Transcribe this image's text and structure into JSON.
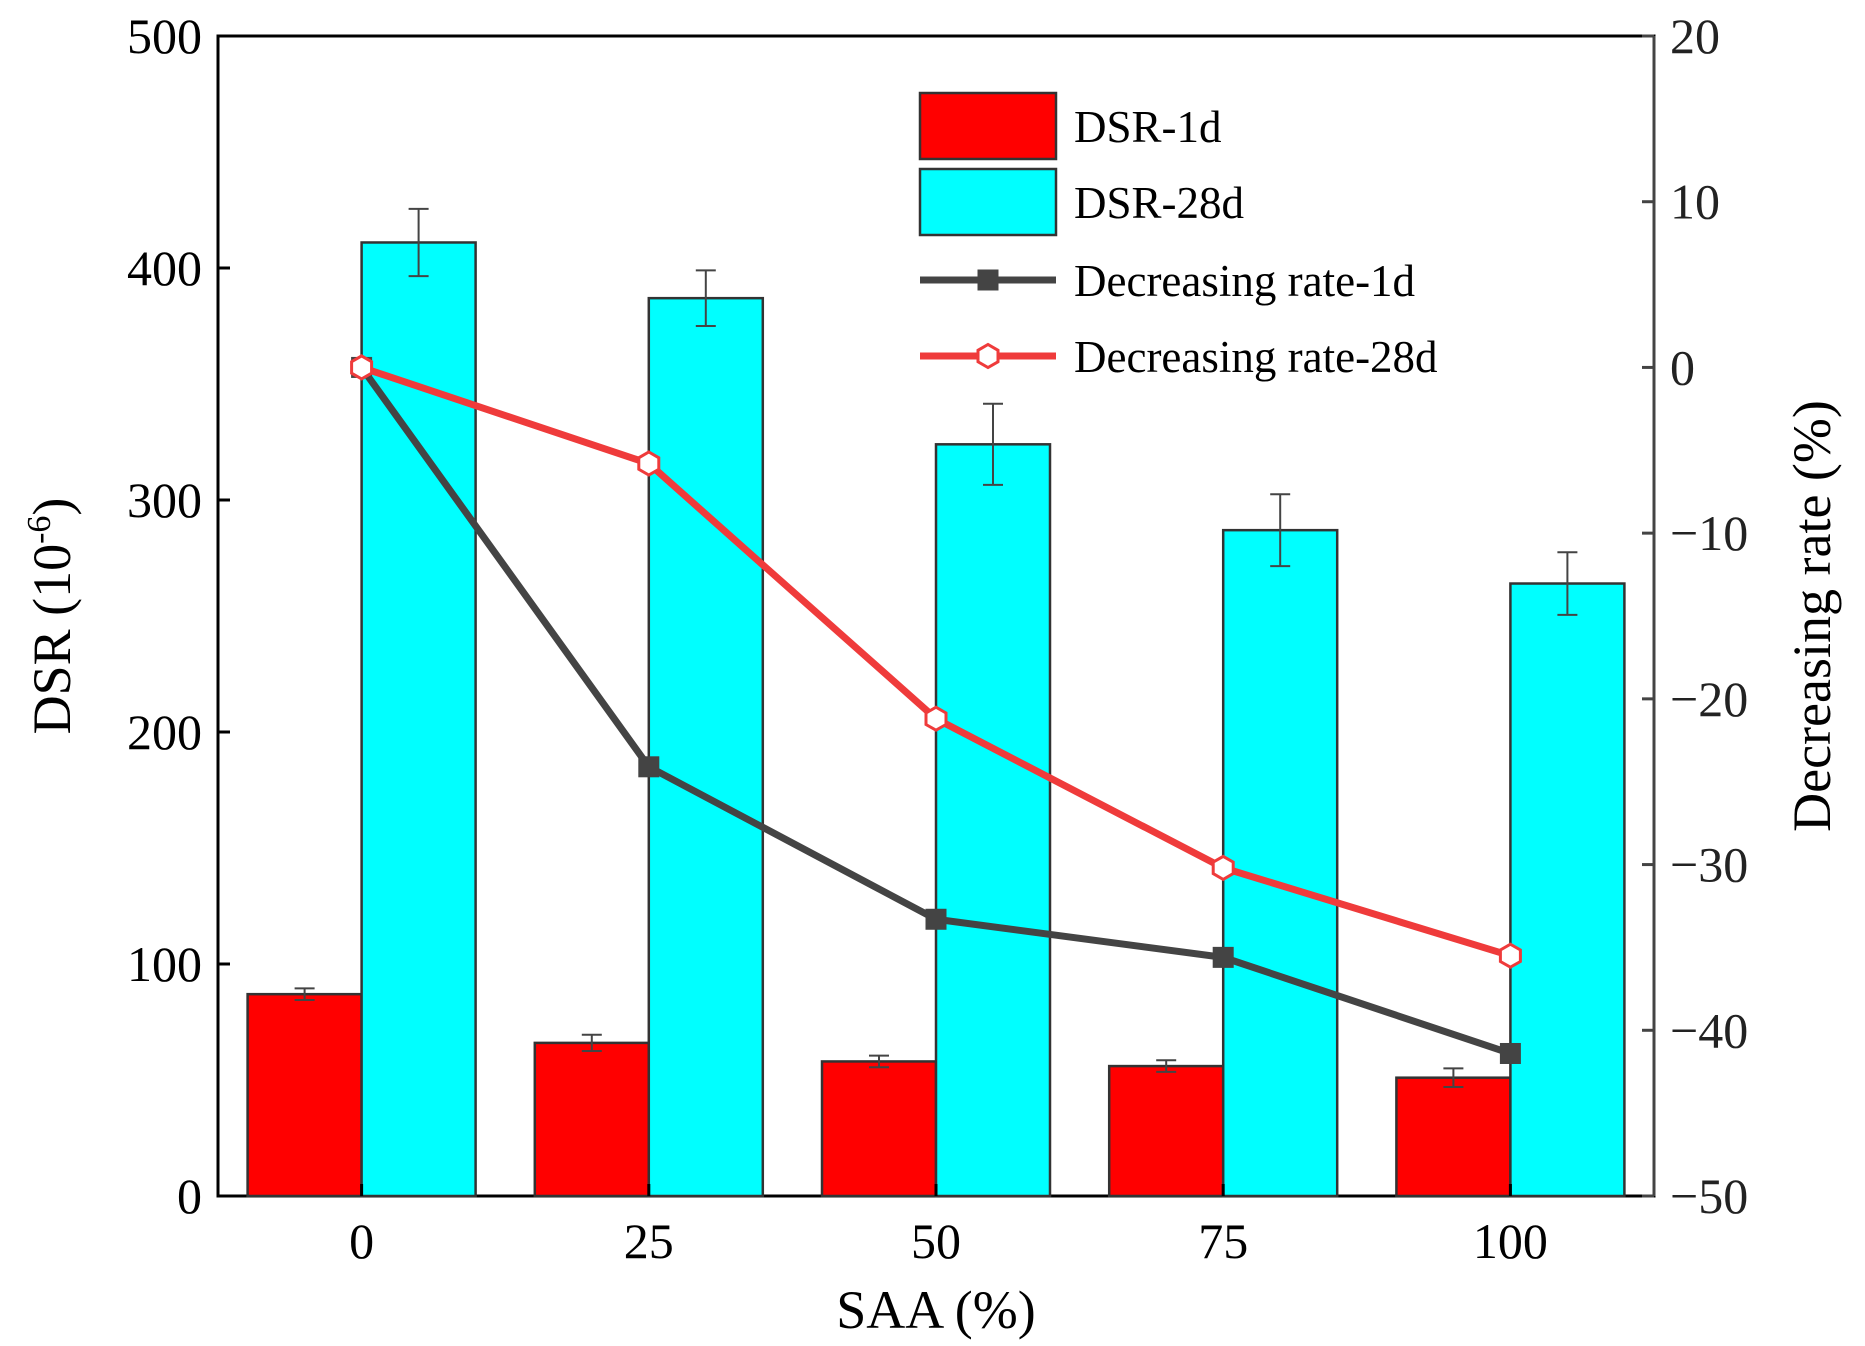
{
  "chart_data": {
    "type": "bar",
    "title": "",
    "categories": [
      "0",
      "25",
      "50",
      "75",
      "100"
    ],
    "xlabel": "SAA (%)",
    "ylabel": {
      "main": "DSR (10",
      "sup": "-6",
      "end": ")"
    },
    "y2label": "Decreasing rate (%)",
    "ylim": [
      0,
      500
    ],
    "y2lim": [
      -50,
      20
    ],
    "yticks": [
      "0",
      "100",
      "200",
      "300",
      "400",
      "500"
    ],
    "y2ticks": [
      "-50",
      "-40",
      "-30",
      "-20",
      "-10",
      "0",
      "10",
      "20"
    ],
    "grid": false,
    "legend_position": "top-right",
    "series": [
      {
        "name": "DSR-1d",
        "kind": "bar",
        "axis": "left",
        "color": "#ff0000",
        "values": [
          87,
          66,
          58,
          56,
          51
        ],
        "errors": [
          2.5,
          3.5,
          2.5,
          2.5,
          4
        ]
      },
      {
        "name": "DSR-28d",
        "kind": "bar",
        "axis": "left",
        "color": "#00ffff",
        "values": [
          411,
          387,
          324,
          287,
          264
        ],
        "errors": [
          14.5,
          12,
          17.5,
          15.5,
          13.5
        ]
      },
      {
        "name": "Decreasing rate-1d",
        "kind": "line",
        "axis": "right",
        "color": "#444444",
        "marker": "square",
        "values": [
          0,
          -24.1,
          -33.3,
          -35.6,
          -41.4
        ]
      },
      {
        "name": "Decreasing rate-28d",
        "kind": "line",
        "axis": "right",
        "color": "#ef3b3b",
        "marker": "open-hexagon",
        "values": [
          0,
          -5.8,
          -21.2,
          -30.2,
          -35.5
        ]
      }
    ]
  }
}
